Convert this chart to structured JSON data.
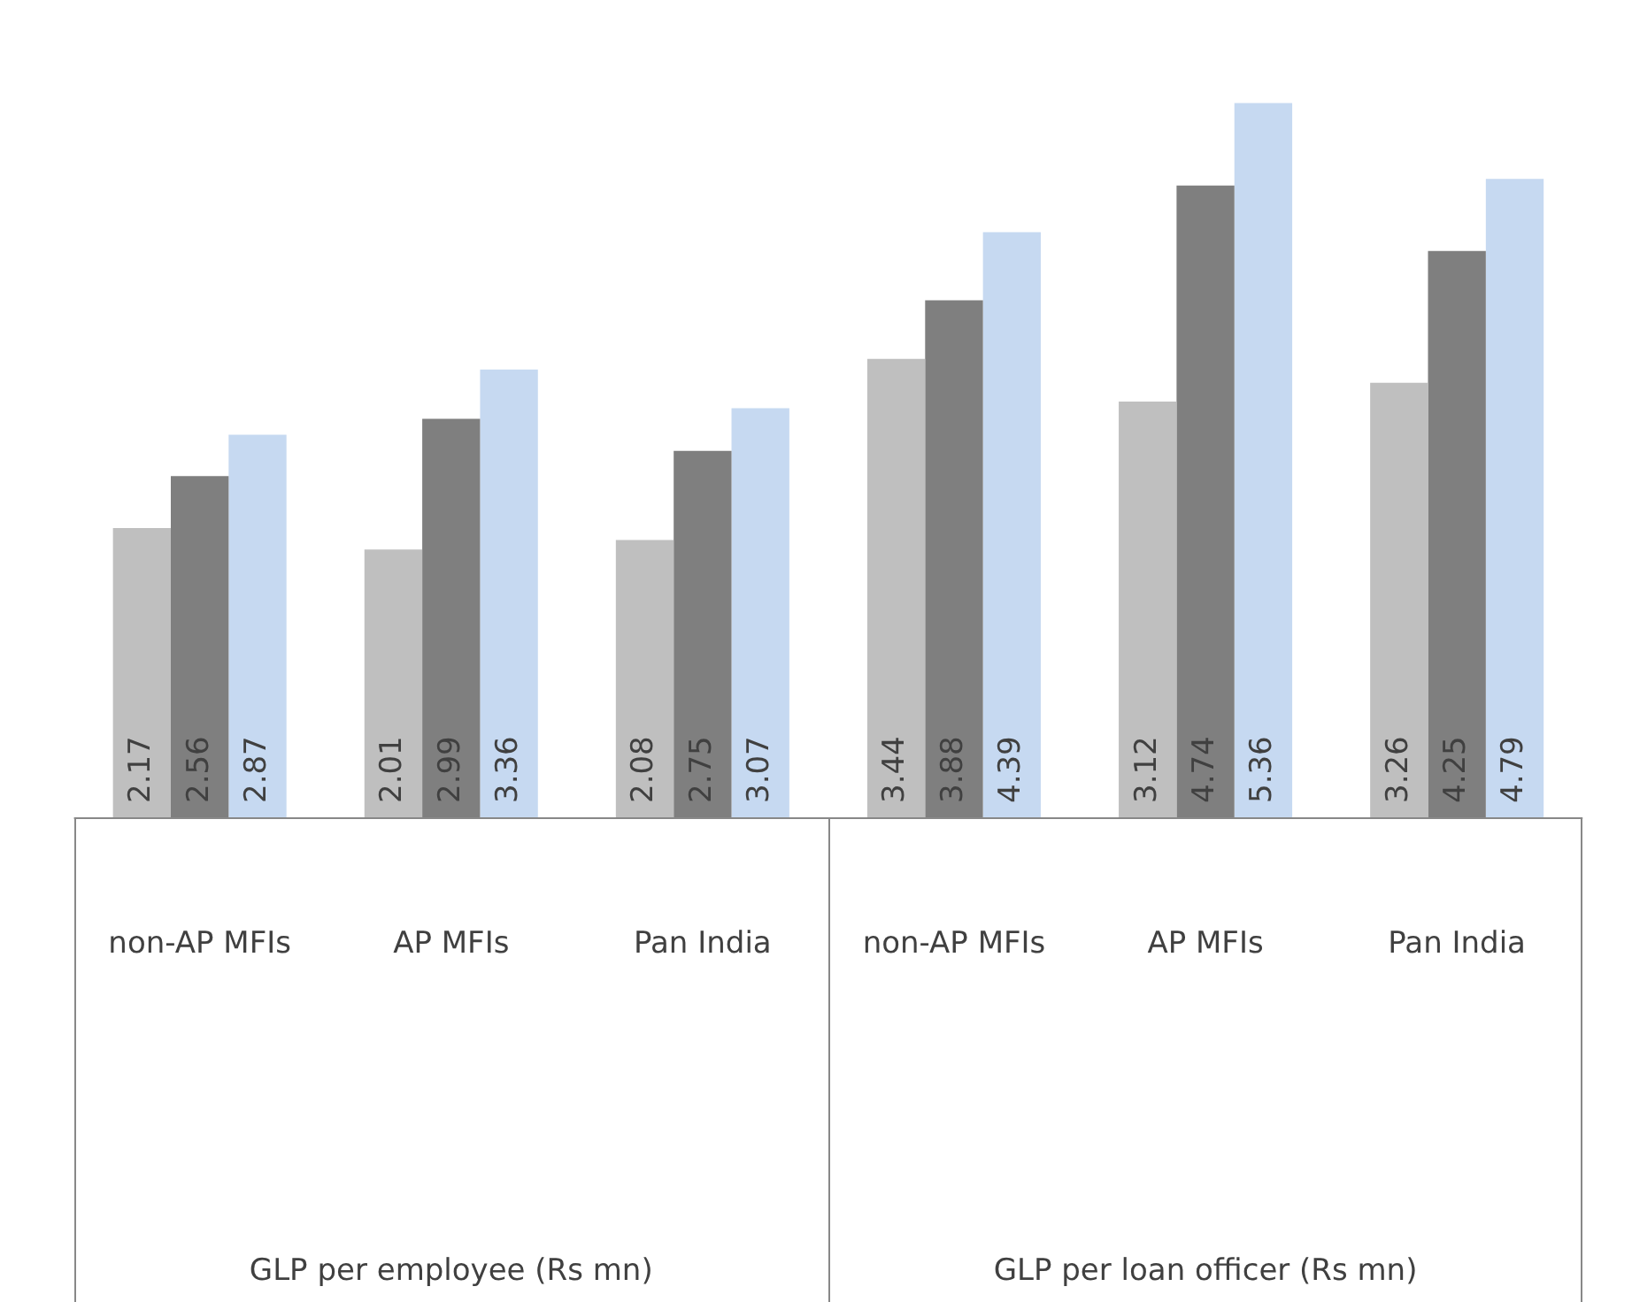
{
  "chart_data": {
    "type": "bar",
    "categories": [
      "non-AP MFIs",
      "AP MFIs",
      "Pan India",
      "non-AP MFIs",
      "AP MFIs",
      "Pan India"
    ],
    "series": [
      {
        "color": "#bfbfbf",
        "values": [
          2.17,
          2.01,
          2.08,
          3.44,
          3.12,
          3.26
        ]
      },
      {
        "color": "#7f7f7f",
        "values": [
          2.56,
          2.99,
          2.75,
          3.88,
          4.74,
          4.25
        ]
      },
      {
        "color": "#c6d9f1",
        "values": [
          2.87,
          3.36,
          3.07,
          4.39,
          5.36,
          4.79
        ]
      }
    ],
    "data_labels": true,
    "annotations": [
      "GLP per employee (Rs mn)",
      "GLP per loan officer (Rs mn)"
    ],
    "legend": false,
    "grid": false
  }
}
